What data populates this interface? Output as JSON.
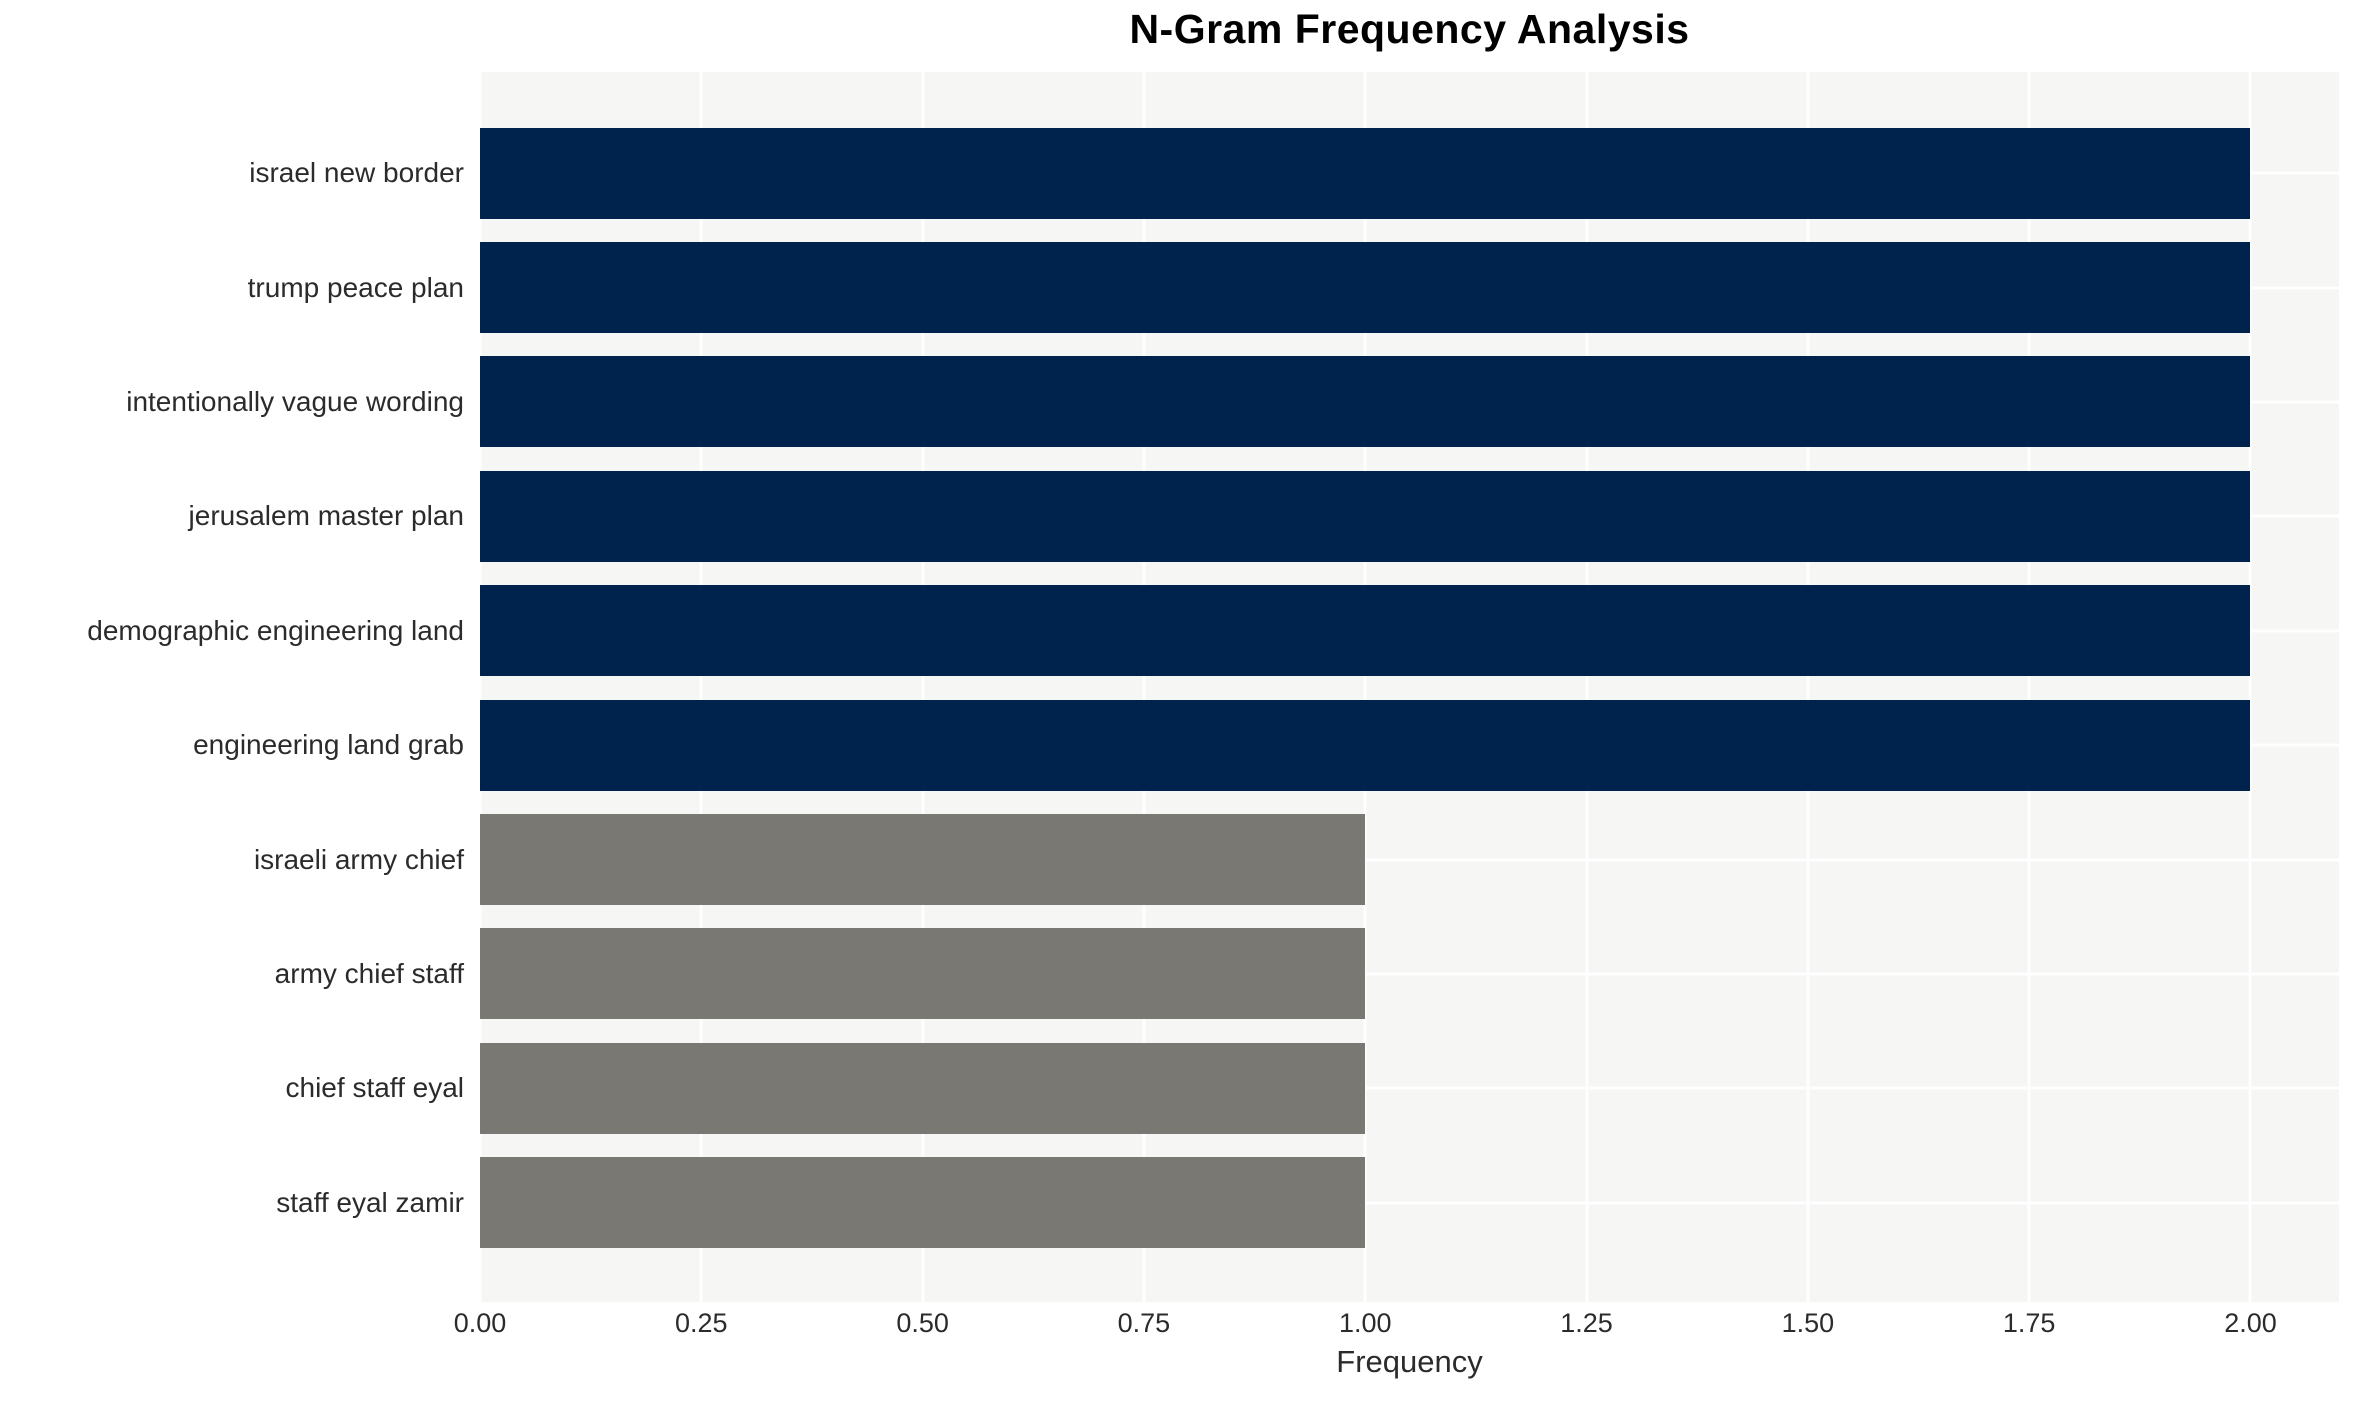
{
  "chart_data": {
    "type": "bar",
    "orientation": "horizontal",
    "title": "N-Gram Frequency Analysis",
    "xlabel": "Frequency",
    "ylabel": "",
    "categories": [
      "israel new border",
      "trump peace plan",
      "intentionally vague wording",
      "jerusalem master plan",
      "demographic engineering land",
      "engineering land grab",
      "israeli army chief",
      "army chief staff",
      "chief staff eyal",
      "staff eyal zamir"
    ],
    "values": [
      2,
      2,
      2,
      2,
      2,
      2,
      1,
      1,
      1,
      1
    ],
    "bar_colors": [
      "#00234D",
      "#00234D",
      "#00234D",
      "#00234D",
      "#00234D",
      "#00234D",
      "#7A7872",
      "#7A7872",
      "#7A7872",
      "#7A7872"
    ],
    "xlim": [
      0,
      2.1
    ],
    "xtick_values": [
      0,
      0.25,
      0.5,
      0.75,
      1.0,
      1.25,
      1.5,
      1.75,
      2.0
    ],
    "xtick_labels": [
      "0.00",
      "0.25",
      "0.50",
      "0.75",
      "1.00",
      "1.25",
      "1.50",
      "1.75",
      "2.00"
    ],
    "grid": true,
    "legend": false,
    "colors": {
      "bar_high": "#00234D",
      "bar_low": "#7A7872",
      "panel_background": "#F6F6F4",
      "grid_line": "#FFFFFF",
      "tick_text": "#2B2B2B",
      "title_text": "#000000",
      "figure_background": "#FFFFFF"
    }
  }
}
